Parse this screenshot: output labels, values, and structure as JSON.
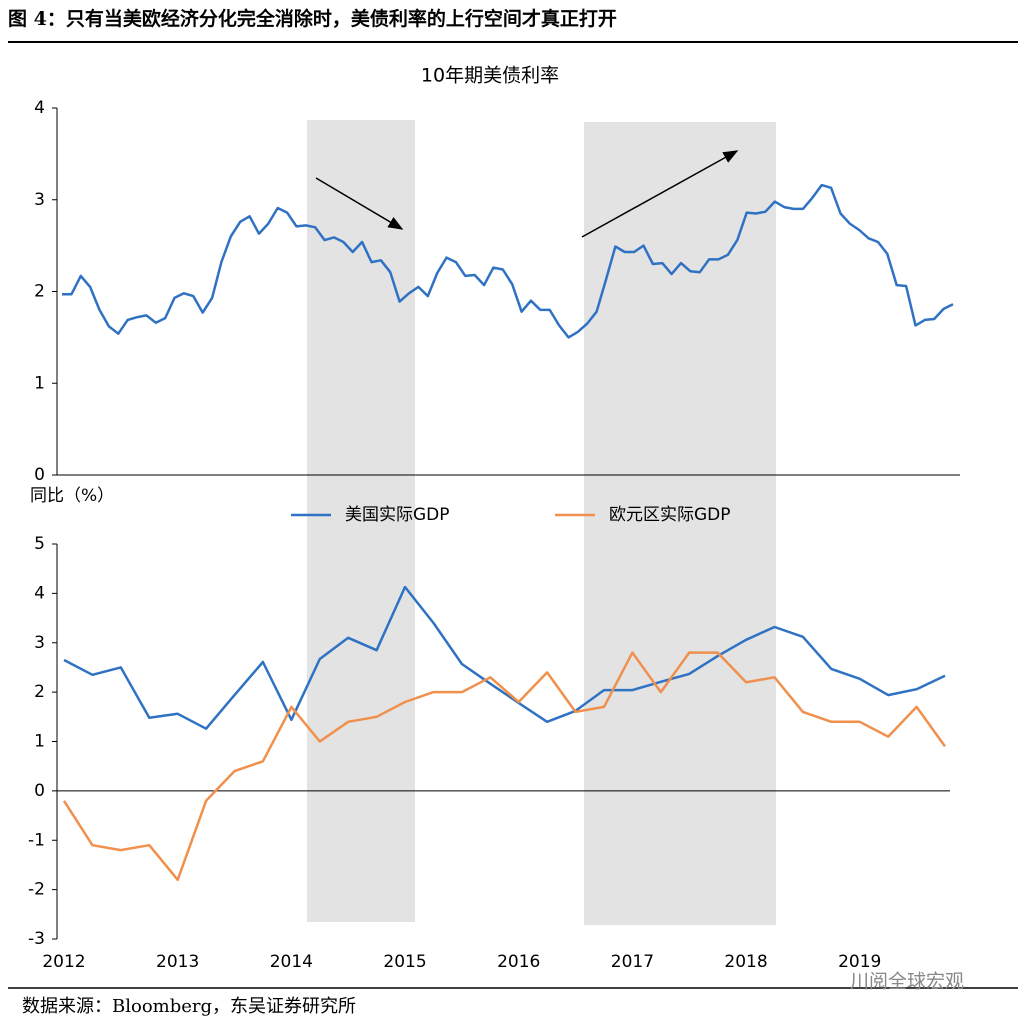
{
  "figure_title": "图 4：只有当美欧经济分化完全消除时，美债利率的上行空间才真正打开",
  "source": "数据来源：Bloomberg，东吴证券研究所",
  "watermark": "川阅全球宏观",
  "chart_data": [
    {
      "type": "line",
      "title": "10年期美债利率",
      "color": "#2f72c4",
      "values": [
        1.97,
        1.97,
        2.17,
        2.05,
        1.8,
        1.62,
        1.54,
        1.69,
        1.72,
        1.74,
        1.66,
        1.71,
        1.93,
        1.98,
        1.95,
        1.77,
        1.93,
        2.32,
        2.6,
        2.76,
        2.82,
        2.63,
        2.74,
        2.91,
        2.86,
        2.71,
        2.72,
        2.7,
        2.56,
        2.59,
        2.54,
        2.43,
        2.54,
        2.32,
        2.34,
        2.21,
        1.89,
        1.98,
        2.05,
        1.95,
        2.2,
        2.37,
        2.32,
        2.17,
        2.18,
        2.07,
        2.26,
        2.24,
        2.08,
        1.78,
        1.9,
        1.8,
        1.8,
        1.63,
        1.5,
        1.56,
        1.65,
        1.78,
        2.13,
        2.49,
        2.43,
        2.43,
        2.5,
        2.3,
        2.31,
        2.19,
        2.31,
        2.22,
        2.21,
        2.35,
        2.35,
        2.4,
        2.56,
        2.86,
        2.85,
        2.87,
        2.98,
        2.92,
        2.9,
        2.9,
        3.02,
        3.16,
        3.13,
        2.85,
        2.74,
        2.67,
        2.58,
        2.54,
        2.41,
        2.07,
        2.06,
        1.63,
        1.69,
        1.7,
        1.81,
        1.86
      ],
      "ylim": [
        0,
        4
      ],
      "yticks": [
        0,
        1,
        2,
        3,
        4
      ]
    },
    {
      "type": "line",
      "y_label": "同比（%）",
      "categories": [
        "2012",
        null,
        null,
        null,
        "2013",
        null,
        null,
        null,
        "2014",
        null,
        null,
        null,
        "2015",
        null,
        null,
        null,
        "2016",
        null,
        null,
        null,
        "2017",
        null,
        null,
        null,
        "2018",
        null,
        null,
        null,
        "2019",
        null,
        null,
        null
      ],
      "series": [
        {
          "name": "美国实际GDP",
          "color": "#2f72c4",
          "values": [
            2.65,
            2.35,
            2.5,
            1.48,
            1.56,
            1.26,
            1.94,
            2.61,
            1.44,
            2.67,
            3.1,
            2.85,
            4.13,
            3.4,
            2.57,
            2.17,
            1.78,
            1.4,
            1.62,
            2.04,
            2.04,
            2.21,
            2.37,
            2.73,
            3.06,
            3.32,
            3.12,
            2.47,
            2.27,
            1.94,
            2.06,
            2.33
          ]
        },
        {
          "name": "欧元区实际GDP",
          "color": "#f0904c",
          "values": [
            -0.2,
            -1.1,
            -1.2,
            -1.1,
            -1.8,
            -0.2,
            0.4,
            0.6,
            1.7,
            1.0,
            1.4,
            1.5,
            1.8,
            2.0,
            2.0,
            2.3,
            1.8,
            2.4,
            1.6,
            1.7,
            2.8,
            2.0,
            2.8,
            2.8,
            2.2,
            2.3,
            1.6,
            1.4,
            1.4,
            1.1,
            1.7,
            0.9
          ]
        }
      ],
      "ylim": [
        -3,
        5
      ],
      "yticks": [
        -3,
        -2,
        -1,
        0,
        1,
        2,
        3,
        4,
        5
      ]
    }
  ]
}
